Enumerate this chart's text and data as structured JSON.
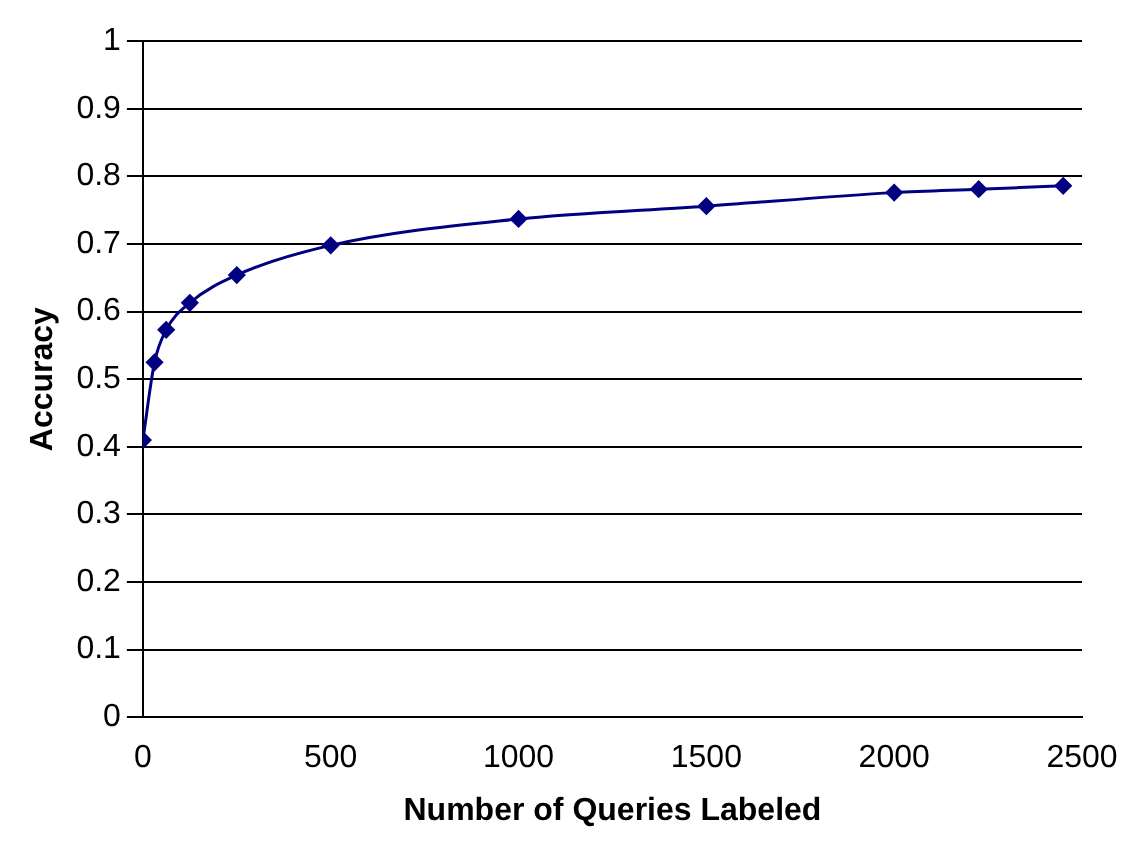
{
  "chart_data": {
    "type": "line",
    "xlabel": "Number of Queries Labeled",
    "ylabel": "Accuracy",
    "x": [
      0,
      31,
      62,
      125,
      250,
      500,
      1000,
      1500,
      2000,
      2225,
      2450
    ],
    "series": [
      {
        "color": "#000080",
        "values": [
          0.41,
          0.525,
          0.573,
          0.613,
          0.654,
          0.698,
          0.737,
          0.756,
          0.776,
          0.781,
          0.786
        ]
      }
    ],
    "xlim": [
      0,
      2500
    ],
    "xticks": [
      0,
      500,
      1000,
      1500,
      2000,
      2500
    ],
    "ylim": [
      0,
      1
    ],
    "yticks": [
      0,
      0.1,
      0.2,
      0.3,
      0.4,
      0.5,
      0.6,
      0.7,
      0.8,
      0.9,
      1
    ],
    "grid": "y",
    "legend": false,
    "marker": "diamond",
    "line_style": "solid"
  }
}
